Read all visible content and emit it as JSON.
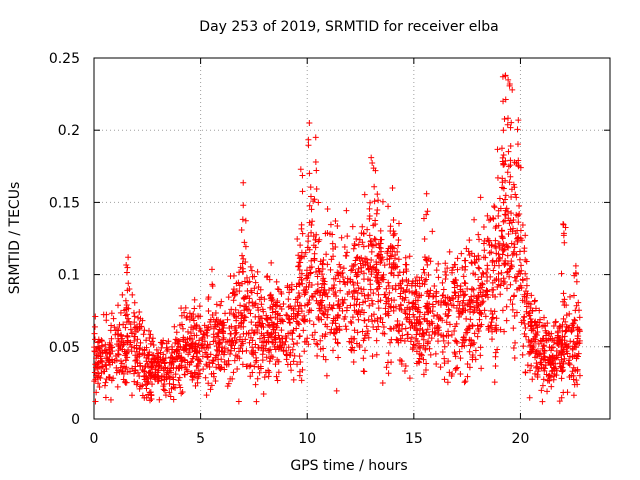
{
  "chart_data": {
    "type": "scatter",
    "title": "Day 253 of 2019, SRMTID for receiver elba",
    "xlabel": "GPS time / hours",
    "ylabel": "SRMTID / TECUs",
    "xlim": [
      0,
      24.2
    ],
    "ylim": [
      0,
      0.25
    ],
    "x_ticks": [
      "0",
      "5",
      "10",
      "15",
      "20"
    ],
    "x_tick_values": [
      0,
      5,
      10,
      15,
      20
    ],
    "y_ticks": [
      "0",
      "0.05",
      "0.1",
      "0.15",
      "0.2",
      "0.25"
    ],
    "y_tick_values": [
      0,
      0.05,
      0.1,
      0.15,
      0.2,
      0.25
    ],
    "grid": true,
    "marker": "+",
    "marker_color": "#ff0000",
    "x_range_data": [
      0,
      22.8
    ],
    "trend": [
      {
        "x": 0.0,
        "y": 0.04
      },
      {
        "x": 1.0,
        "y": 0.048
      },
      {
        "x": 1.7,
        "y": 0.055
      },
      {
        "x": 2.5,
        "y": 0.035
      },
      {
        "x": 3.5,
        "y": 0.035
      },
      {
        "x": 4.5,
        "y": 0.05
      },
      {
        "x": 5.5,
        "y": 0.055
      },
      {
        "x": 6.5,
        "y": 0.055
      },
      {
        "x": 7.0,
        "y": 0.075
      },
      {
        "x": 8.0,
        "y": 0.06
      },
      {
        "x": 9.0,
        "y": 0.06
      },
      {
        "x": 9.8,
        "y": 0.075
      },
      {
        "x": 10.2,
        "y": 0.095
      },
      {
        "x": 11.0,
        "y": 0.08
      },
      {
        "x": 12.0,
        "y": 0.08
      },
      {
        "x": 13.0,
        "y": 0.09
      },
      {
        "x": 14.0,
        "y": 0.085
      },
      {
        "x": 15.0,
        "y": 0.07
      },
      {
        "x": 16.0,
        "y": 0.068
      },
      {
        "x": 17.0,
        "y": 0.07
      },
      {
        "x": 18.0,
        "y": 0.08
      },
      {
        "x": 18.8,
        "y": 0.1
      },
      {
        "x": 19.3,
        "y": 0.13
      },
      {
        "x": 19.8,
        "y": 0.11
      },
      {
        "x": 20.5,
        "y": 0.06
      },
      {
        "x": 21.0,
        "y": 0.045
      },
      {
        "x": 22.0,
        "y": 0.045
      },
      {
        "x": 22.8,
        "y": 0.05
      }
    ],
    "peaks": [
      {
        "x": 1.6,
        "y": 0.112
      },
      {
        "x": 7.0,
        "y": 0.148
      },
      {
        "x": 9.7,
        "y": 0.173
      },
      {
        "x": 10.1,
        "y": 0.205
      },
      {
        "x": 10.4,
        "y": 0.195
      },
      {
        "x": 13.0,
        "y": 0.181
      },
      {
        "x": 13.2,
        "y": 0.172
      },
      {
        "x": 14.0,
        "y": 0.16
      },
      {
        "x": 15.6,
        "y": 0.156
      },
      {
        "x": 19.3,
        "y": 0.238
      },
      {
        "x": 19.5,
        "y": 0.232
      },
      {
        "x": 19.9,
        "y": 0.207
      },
      {
        "x": 19.2,
        "y": 0.2
      },
      {
        "x": 22.0,
        "y": 0.135
      },
      {
        "x": 22.6,
        "y": 0.106
      }
    ]
  }
}
